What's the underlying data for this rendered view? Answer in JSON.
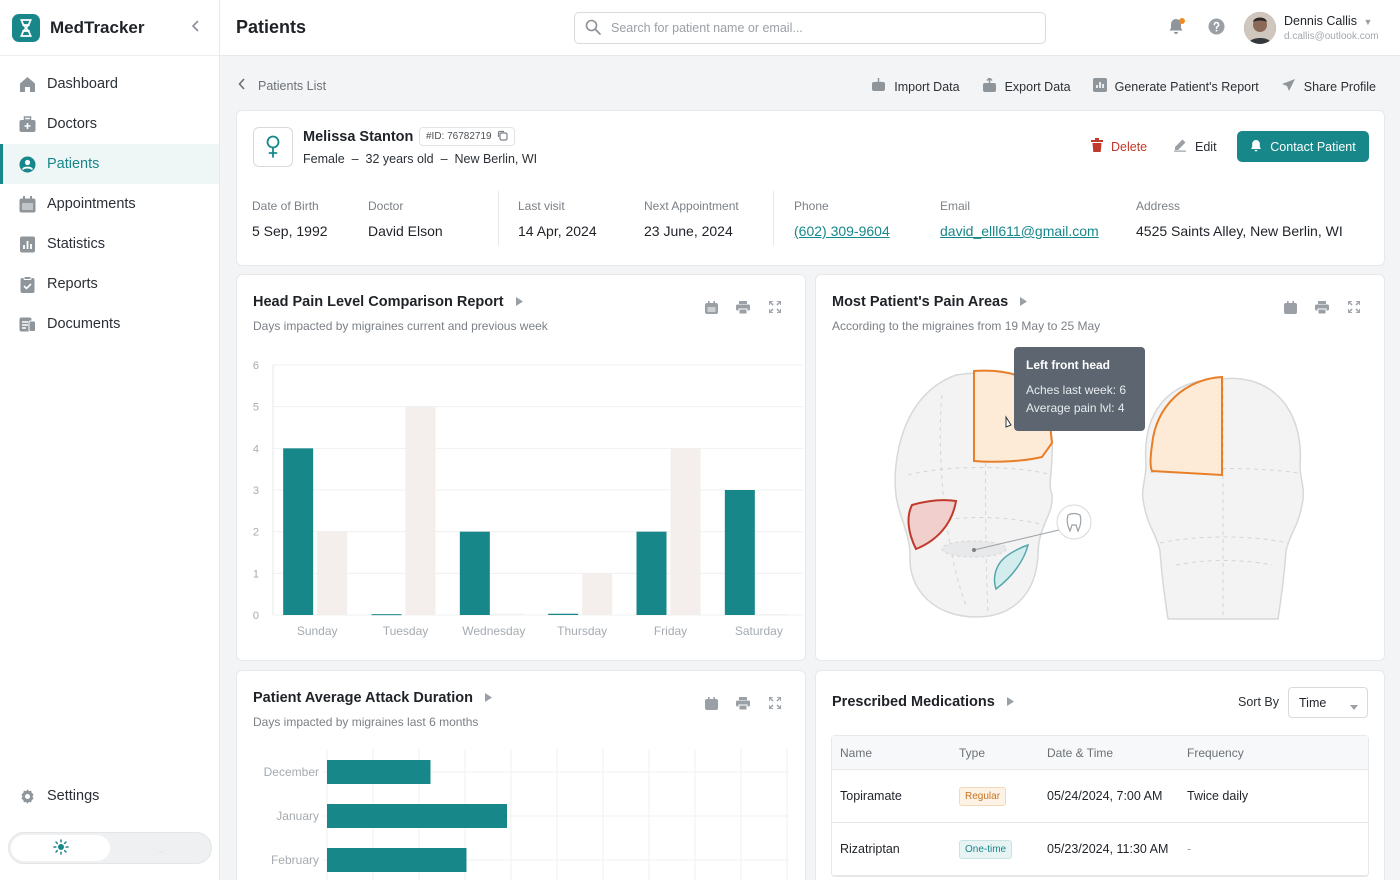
{
  "app": {
    "name": "MedTracker"
  },
  "sidebar": {
    "items": [
      {
        "label": "Dashboard",
        "icon": "home-icon"
      },
      {
        "label": "Doctors",
        "icon": "medical-case-icon"
      },
      {
        "label": "Patients",
        "icon": "user-circle-icon",
        "active": true
      },
      {
        "label": "Appointments",
        "icon": "calendar-icon"
      },
      {
        "label": "Statistics",
        "icon": "bar-chart-icon"
      },
      {
        "label": "Reports",
        "icon": "clipboard-icon"
      },
      {
        "label": "Documents",
        "icon": "document-icon"
      }
    ],
    "settings_label": "Settings"
  },
  "header": {
    "title": "Patients",
    "search_placeholder": "Search for patient name or email...",
    "user_name": "Dennis Callis",
    "user_email": "d.callis@outlook.com"
  },
  "breadcrumb": {
    "back_label": "Patients List"
  },
  "toolbar": {
    "import_label": "Import Data",
    "export_label": "Export Data",
    "report_label": "Generate Patient's Report",
    "share_label": "Share Profile"
  },
  "patient": {
    "name": "Melissa Stanton",
    "id": "#ID: 76782719",
    "meta": "Female  –  32 years old  –  New Berlin, WI",
    "delete_label": "Delete",
    "edit_label": "Edit",
    "contact_label": "Contact Patient",
    "fields": [
      {
        "label": "Date of Birth",
        "value": "5 Sep, 1992"
      },
      {
        "label": "Doctor",
        "value": "David Elson"
      },
      {
        "label": "Last visit",
        "value": "14 Apr, 2024"
      },
      {
        "label": "Next Appointment",
        "value": "23 June, 2024"
      },
      {
        "label": "Phone",
        "value": "(602) 309-9604"
      },
      {
        "label": "Email",
        "value": "david_elll611@gmail.com"
      },
      {
        "label": "Address",
        "value": "4525 Saints Alley, New Berlin, WI"
      }
    ]
  },
  "head_pain": {
    "title": "Head Pain Level Comparison Report",
    "subtitle": "Days impacted by migraines current and previous week"
  },
  "pain_areas": {
    "title": "Most Patient's Pain Areas",
    "subtitle": "According to the migraines from 19 May to 25 May",
    "tooltip": {
      "title": "Left front head",
      "line1": "Aches last week: 6",
      "line2": "Average pain lvl: 4"
    }
  },
  "attack": {
    "title": "Patient Average Attack Duration",
    "subtitle": "Days impacted by migraines last 6 months"
  },
  "medications": {
    "title": "Prescribed Medications",
    "sort_label": "Sort By",
    "sort_value": "Time",
    "columns": [
      "Name",
      "Type",
      "Date & Time",
      "Frequency"
    ],
    "rows": [
      {
        "name": "Topiramate",
        "type": "Regular",
        "datetime": "05/24/2024, 7:00 AM",
        "frequency": "Twice daily"
      },
      {
        "name": "Rizatriptan",
        "type": "One-time",
        "datetime": "05/23/2024, 11:30 AM",
        "frequency": "-"
      }
    ]
  },
  "chart_data": [
    {
      "type": "bar",
      "categories": [
        "Sunday",
        "Tuesday",
        "Wednesday",
        "Thursday",
        "Friday",
        "Saturday"
      ],
      "series": [
        {
          "values": [
            4,
            0.02,
            2,
            0.03,
            2,
            3
          ],
          "color": "#17878a"
        },
        {
          "values": [
            2,
            5,
            0.03,
            1,
            4,
            0.02
          ],
          "color": "#f4eeec"
        }
      ],
      "ylim": [
        0,
        6
      ],
      "yticks": [
        0,
        1,
        2,
        3,
        4,
        5,
        6
      ],
      "grid": true
    },
    {
      "type": "bar",
      "orientation": "horizontal",
      "categories": [
        "December",
        "January",
        "February"
      ],
      "values": [
        2.3,
        4.0,
        3.1
      ],
      "color": "#17878a",
      "grid": true
    }
  ]
}
